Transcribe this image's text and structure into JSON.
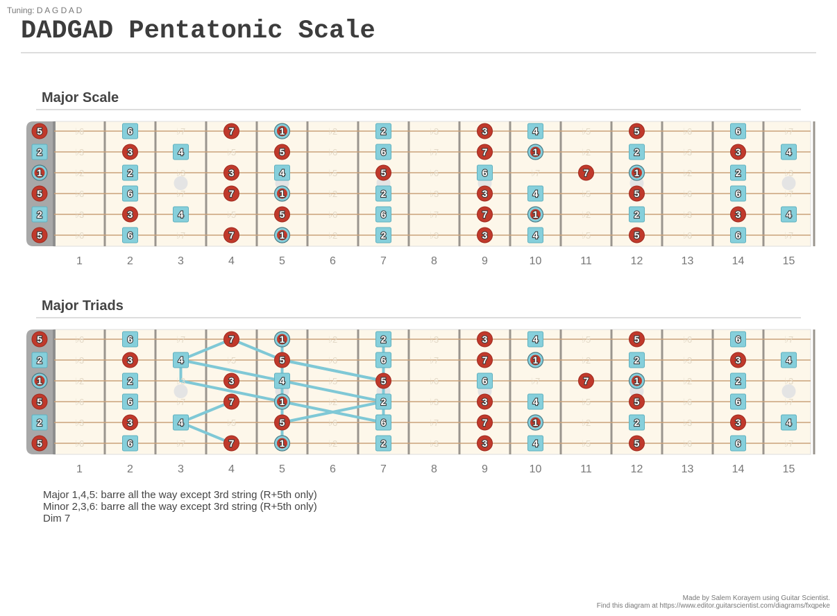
{
  "tuning_label": "Tuning: D A G D A D",
  "title": "DADGAD Pentatonic Scale",
  "fret_numbers": [
    "1",
    "2",
    "3",
    "4",
    "5",
    "6",
    "7",
    "8",
    "9",
    "10",
    "11",
    "12",
    "13",
    "14",
    "15"
  ],
  "inlay_frets": [
    3,
    5,
    7,
    9
  ],
  "double_inlay_frets": [
    12,
    15
  ],
  "colors": {
    "red": "#c0392b",
    "blue": "#86cfdb",
    "line": "#7fc8d6",
    "board": "#fdf7ea",
    "nut": "#a8a8a8"
  },
  "strings": [
    {
      "open": {
        "label": "5",
        "shape": "red"
      },
      "frets": [
        [
          "♭6",
          "g"
        ],
        [
          "6",
          "b"
        ],
        [
          "♭7",
          "g"
        ],
        [
          "7",
          "r"
        ],
        [
          "1",
          "c"
        ],
        [
          "♭2",
          "g"
        ],
        [
          "2",
          "b"
        ],
        [
          "♭3",
          "g"
        ],
        [
          "3",
          "r"
        ],
        [
          "4",
          "b"
        ],
        [
          "♭5",
          "g"
        ],
        [
          "5",
          "r"
        ],
        [
          "♭6",
          "g"
        ],
        [
          "6",
          "b"
        ],
        [
          "♭7",
          "g"
        ]
      ]
    },
    {
      "open": {
        "label": "2",
        "shape": "blue"
      },
      "frets": [
        [
          "♭3",
          "g"
        ],
        [
          "3",
          "r"
        ],
        [
          "4",
          "b"
        ],
        [
          "♭5",
          "g"
        ],
        [
          "5",
          "r"
        ],
        [
          "♭6",
          "g"
        ],
        [
          "6",
          "b"
        ],
        [
          "♭7",
          "g"
        ],
        [
          "7",
          "r"
        ],
        [
          "1",
          "c"
        ],
        [
          "♭2",
          "g"
        ],
        [
          "2",
          "b"
        ],
        [
          "♭3",
          "g"
        ],
        [
          "3",
          "r"
        ],
        [
          "4",
          "b"
        ]
      ]
    },
    {
      "open": {
        "label": "1",
        "shape": "circle"
      },
      "frets": [
        [
          "♭2",
          "g"
        ],
        [
          "2",
          "b"
        ],
        [
          "♭3",
          "g"
        ],
        [
          "3",
          "r"
        ],
        [
          "4",
          "b"
        ],
        [
          "♭5",
          "g"
        ],
        [
          "5",
          "r"
        ],
        [
          "♭6",
          "g"
        ],
        [
          "6",
          "b"
        ],
        [
          "♭7",
          "g"
        ],
        [
          "7",
          "r"
        ],
        [
          "1",
          "c"
        ],
        [
          "♭2",
          "g"
        ],
        [
          "2",
          "b"
        ],
        [
          "♭3",
          "g"
        ]
      ]
    },
    {
      "open": {
        "label": "5",
        "shape": "red"
      },
      "frets": [
        [
          "♭6",
          "g"
        ],
        [
          "6",
          "b"
        ],
        [
          "♭7",
          "g"
        ],
        [
          "7",
          "r"
        ],
        [
          "1",
          "c"
        ],
        [
          "♭2",
          "g"
        ],
        [
          "2",
          "b"
        ],
        [
          "♭3",
          "g"
        ],
        [
          "3",
          "r"
        ],
        [
          "4",
          "b"
        ],
        [
          "♭5",
          "g"
        ],
        [
          "5",
          "r"
        ],
        [
          "♭6",
          "g"
        ],
        [
          "6",
          "b"
        ],
        [
          "♭7",
          "g"
        ]
      ]
    },
    {
      "open": {
        "label": "2",
        "shape": "blue"
      },
      "frets": [
        [
          "♭3",
          "g"
        ],
        [
          "3",
          "r"
        ],
        [
          "4",
          "b"
        ],
        [
          "♭5",
          "g"
        ],
        [
          "5",
          "r"
        ],
        [
          "♭6",
          "g"
        ],
        [
          "6",
          "b"
        ],
        [
          "♭7",
          "g"
        ],
        [
          "7",
          "r"
        ],
        [
          "1",
          "c"
        ],
        [
          "♭2",
          "g"
        ],
        [
          "2",
          "b"
        ],
        [
          "♭3",
          "g"
        ],
        [
          "3",
          "r"
        ],
        [
          "4",
          "b"
        ]
      ]
    },
    {
      "open": {
        "label": "5",
        "shape": "red"
      },
      "frets": [
        [
          "♭6",
          "g"
        ],
        [
          "6",
          "b"
        ],
        [
          "♭7",
          "g"
        ],
        [
          "7",
          "r"
        ],
        [
          "1",
          "c"
        ],
        [
          "♭2",
          "g"
        ],
        [
          "2",
          "b"
        ],
        [
          "♭3",
          "g"
        ],
        [
          "3",
          "r"
        ],
        [
          "4",
          "b"
        ],
        [
          "♭5",
          "g"
        ],
        [
          "5",
          "r"
        ],
        [
          "♭6",
          "g"
        ],
        [
          "6",
          "b"
        ],
        [
          "♭7",
          "g"
        ]
      ]
    }
  ],
  "sections": [
    {
      "title": "Major Scale",
      "connections": []
    },
    {
      "title": "Major Triads",
      "connections": [
        [
          [
            0,
            4
          ],
          [
            1,
            3
          ],
          [
            2,
            3
          ]
        ],
        [
          [
            0,
            4
          ],
          [
            1,
            5
          ],
          [
            2,
            5
          ]
        ],
        [
          [
            0,
            5
          ],
          [
            1,
            5
          ],
          [
            2,
            7
          ]
        ],
        [
          [
            0,
            7
          ],
          [
            1,
            7
          ],
          [
            2,
            7
          ]
        ],
        [
          [
            1,
            3
          ],
          [
            2,
            5
          ],
          [
            3,
            7
          ]
        ],
        [
          [
            1,
            5
          ],
          [
            2,
            7
          ],
          [
            3,
            7
          ]
        ],
        [
          [
            2,
            3
          ],
          [
            3,
            5
          ],
          [
            4,
            5
          ]
        ],
        [
          [
            2,
            5
          ],
          [
            3,
            5
          ],
          [
            4,
            7
          ]
        ],
        [
          [
            2,
            7
          ],
          [
            3,
            7
          ],
          [
            4,
            7
          ]
        ],
        [
          [
            3,
            4
          ],
          [
            4,
            3
          ],
          [
            5,
            4
          ]
        ],
        [
          [
            3,
            5
          ],
          [
            4,
            5
          ],
          [
            5,
            5
          ]
        ],
        [
          [
            3,
            7
          ],
          [
            4,
            5
          ],
          [
            5,
            5
          ]
        ]
      ]
    }
  ],
  "notes": [
    "Major 1,4,5: barre all the way except 3rd string (R+5th only)",
    "Minor 2,3,6: barre all the way except 3rd string (R+5th only)",
    "Dim 7"
  ],
  "credit": [
    "Made by Salem Korayem using Guitar Scientist.",
    "Find this diagram at https://www.editor.guitarscientist.com/diagrams/fxqpeke"
  ]
}
